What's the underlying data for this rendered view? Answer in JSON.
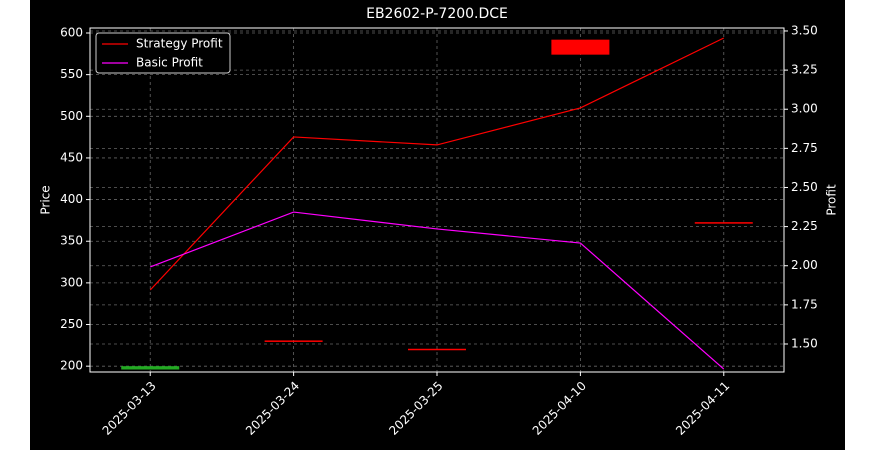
{
  "chart_data": {
    "type": "candlestick-line",
    "title": "EB2602-P-7200.DCE",
    "y_label": "Price",
    "y2_label": "Profit",
    "categories": [
      "2025-03-13",
      "2025-03-24",
      "2025-03-25",
      "2025-04-10",
      "2025-04-11"
    ],
    "bars": {
      "open": [
        196,
        230,
        220,
        592,
        372
      ],
      "close": [
        200,
        230,
        220,
        574,
        372
      ],
      "colors": [
        "#22aa22",
        "#ff0000",
        "#ff0000",
        "#ff0000",
        "#ff0000"
      ]
    },
    "series": [
      {
        "name": "Strategy Profit",
        "color": "#ff0000",
        "axis": "y2",
        "values": [
          1.845,
          2.823,
          2.772,
          3.008,
          3.455
        ]
      },
      {
        "name": "Basic Profit",
        "color": "#ff00ff",
        "axis": "y2",
        "values": [
          1.992,
          2.343,
          2.235,
          2.145,
          1.34
        ]
      }
    ],
    "ylim": [
      193,
      606
    ],
    "yticks": [
      200,
      250,
      300,
      350,
      400,
      450,
      500,
      550,
      600
    ],
    "y2lim": [
      1.321,
      3.519
    ],
    "y2ticks": [
      {
        "value": 1.5,
        "label": "1.50"
      },
      {
        "value": 1.75,
        "label": "1.75"
      },
      {
        "value": 2.0,
        "label": "2.00"
      },
      {
        "value": 2.25,
        "label": "2.25"
      },
      {
        "value": 2.5,
        "label": "2.50"
      },
      {
        "value": 2.75,
        "label": "2.75"
      },
      {
        "value": 3.0,
        "label": "3.00"
      },
      {
        "value": 3.25,
        "label": "3.25"
      },
      {
        "value": 3.5,
        "label": "3.50"
      }
    ],
    "grid": true,
    "legend": "upper-left"
  }
}
